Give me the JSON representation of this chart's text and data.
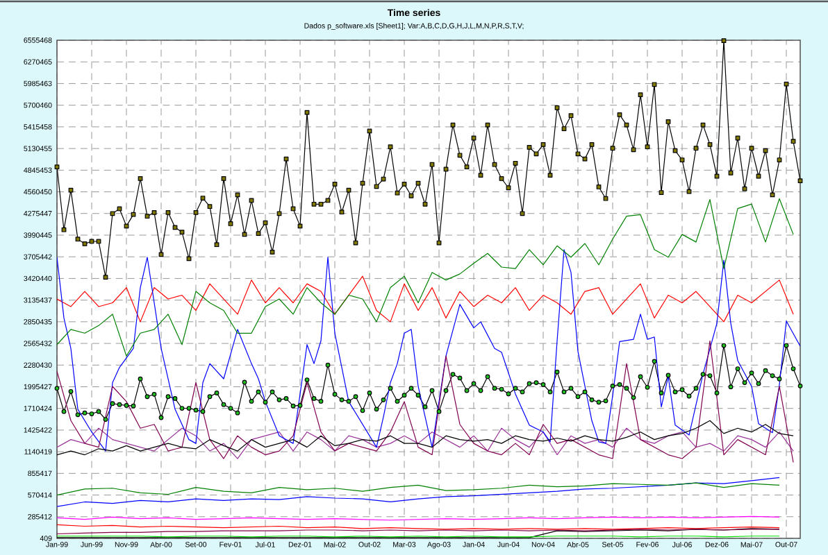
{
  "chart_data": {
    "type": "line",
    "title": "Time series",
    "subtitle": "Dados p_software.xls [Sheet1];  Var:A,B,C,D,G,H,J,L,M,N,P,R,S,T,V;",
    "x": [
      "1999-01",
      "1999-02",
      "1999-03",
      "1999-04",
      "1999-05",
      "1999-06",
      "1999-07",
      "1999-08",
      "1999-09",
      "1999-10",
      "1999-11",
      "1999-12",
      "2000-01",
      "2000-02",
      "2000-03",
      "2000-04",
      "2000-05",
      "2000-06",
      "2000-07",
      "2000-08",
      "2000-09",
      "2000-10",
      "2000-11",
      "2000-12",
      "2001-01",
      "2001-02",
      "2001-03",
      "2001-04",
      "2001-05",
      "2001-06",
      "2001-07",
      "2001-08",
      "2001-09",
      "2001-10",
      "2001-11",
      "2001-12",
      "2002-01",
      "2002-02",
      "2002-03",
      "2002-04",
      "2002-05",
      "2002-06",
      "2002-07",
      "2002-08",
      "2002-09",
      "2002-10",
      "2002-11",
      "2002-12",
      "2003-01",
      "2003-02",
      "2003-03",
      "2003-04",
      "2003-05",
      "2003-06",
      "2003-07",
      "2003-08",
      "2003-09",
      "2003-10",
      "2003-11",
      "2003-12",
      "2004-01",
      "2004-02",
      "2004-03",
      "2004-04",
      "2004-05",
      "2004-06",
      "2004-07",
      "2004-08",
      "2004-09",
      "2004-10",
      "2004-11",
      "2004-12",
      "2005-01",
      "2005-02",
      "2005-03",
      "2005-04",
      "2005-05",
      "2005-06",
      "2005-07",
      "2005-08",
      "2005-09",
      "2005-10",
      "2005-11",
      "2005-12",
      "2006-01",
      "2006-02",
      "2006-03",
      "2006-04",
      "2006-05",
      "2006-06",
      "2006-07",
      "2006-08",
      "2006-09",
      "2006-10",
      "2006-11",
      "2006-12",
      "2007-01",
      "2007-02",
      "2007-03",
      "2007-04",
      "2007-05",
      "2007-06",
      "2007-07",
      "2007-08",
      "2007-09",
      "2007-10",
      "2007-11",
      "2007-12"
    ],
    "xlim": [
      "1999-01",
      "2007-12"
    ],
    "xticks": [
      {
        "value": "1999-01",
        "label": "Jan-99"
      },
      {
        "value": "1999-06",
        "label": "Jun-99"
      },
      {
        "value": "1999-11",
        "label": "Nov-99"
      },
      {
        "value": "2000-04",
        "label": "Abr-00"
      },
      {
        "value": "2000-09",
        "label": "Set-00"
      },
      {
        "value": "2001-02",
        "label": "Fev-01"
      },
      {
        "value": "2001-07",
        "label": "Jul-01"
      },
      {
        "value": "2001-12",
        "label": "Dez-01"
      },
      {
        "value": "2002-05",
        "label": "Mai-02"
      },
      {
        "value": "2002-10",
        "label": "Out-02"
      },
      {
        "value": "2003-03",
        "label": "Mar-03"
      },
      {
        "value": "2003-08",
        "label": "Ago-03"
      },
      {
        "value": "2004-01",
        "label": "Jan-04"
      },
      {
        "value": "2004-06",
        "label": "Jun-04"
      },
      {
        "value": "2004-11",
        "label": "Nov-04"
      },
      {
        "value": "2005-04",
        "label": "Abr-05"
      },
      {
        "value": "2005-09",
        "label": "Set-05"
      },
      {
        "value": "2006-02",
        "label": "Fev-06"
      },
      {
        "value": "2006-07",
        "label": "Jul-06"
      },
      {
        "value": "2006-12",
        "label": "Dez-06"
      },
      {
        "value": "2007-05",
        "label": "Mai-07"
      },
      {
        "value": "2007-10",
        "label": "Out-07"
      }
    ],
    "ylim": [
      409,
      6555468
    ],
    "yticks": [
      409,
      285412,
      570414,
      855417,
      1140419,
      1425422,
      1710424,
      1995427,
      2280430,
      2565432,
      2850435,
      3135437,
      3420440,
      3705442,
      3990445,
      4275447,
      4560450,
      4845453,
      5130455,
      5415458,
      5700460,
      5985463,
      6270465,
      6555468
    ],
    "grid": true,
    "marker": "none",
    "line_style": "solid",
    "series": [
      {
        "color": "#ff0000",
        "x": [
          "1999-01",
          "1999-05",
          "1999-09",
          "2000-01",
          "2000-05",
          "2000-09",
          "2001-01",
          "2001-05",
          "2001-09",
          "2002-01",
          "2002-05",
          "2002-09",
          "2003-01",
          "2003-05",
          "2003-09",
          "2004-01",
          "2004-05",
          "2004-09",
          "2005-01",
          "2005-05",
          "2005-09",
          "2006-01",
          "2006-05",
          "2006-09",
          "2007-01",
          "2007-05",
          "2007-09"
        ],
        "values": [
          180000,
          160000,
          170000,
          150000,
          160000,
          150000,
          140000,
          150000,
          160000,
          140000,
          150000,
          130000,
          140000,
          130000,
          120000,
          130000,
          120000,
          130000,
          120000,
          130000,
          120000,
          130000,
          140000,
          130000,
          140000,
          150000,
          140000
        ]
      },
      {
        "color": "#0000ff",
        "x": [
          "1999-01",
          "1999-05",
          "1999-09",
          "2000-01",
          "2000-05",
          "2000-09",
          "2001-01",
          "2001-05",
          "2001-09",
          "2002-01",
          "2002-05",
          "2002-09",
          "2003-01",
          "2003-05",
          "2003-09",
          "2004-01",
          "2004-05",
          "2004-09",
          "2005-01",
          "2005-05",
          "2005-09",
          "2006-01",
          "2006-05",
          "2006-09",
          "2007-01",
          "2007-05",
          "2007-09"
        ],
        "values": [
          420000,
          480000,
          460000,
          500000,
          480000,
          520000,
          500000,
          520000,
          510000,
          550000,
          530000,
          520000,
          480000,
          520000,
          550000,
          560000,
          580000,
          600000,
          620000,
          650000,
          660000,
          680000,
          700000,
          730000,
          720000,
          760000,
          800000
        ]
      },
      {
        "color": "#008000",
        "x": [
          "1999-01",
          "1999-05",
          "1999-09",
          "2000-01",
          "2000-05",
          "2000-09",
          "2001-01",
          "2001-05",
          "2001-09",
          "2002-01",
          "2002-05",
          "2002-09",
          "2003-01",
          "2003-05",
          "2003-09",
          "2004-01",
          "2004-05",
          "2004-09",
          "2005-01",
          "2005-05",
          "2005-09",
          "2006-01",
          "2006-05",
          "2006-09",
          "2007-01",
          "2007-05",
          "2007-09"
        ],
        "values": [
          570000,
          650000,
          660000,
          600000,
          580000,
          670000,
          620000,
          600000,
          670000,
          640000,
          660000,
          620000,
          670000,
          700000,
          630000,
          640000,
          660000,
          700000,
          680000,
          690000,
          720000,
          710000,
          700000,
          730000,
          670000,
          720000,
          700000
        ]
      },
      {
        "color": "#993399",
        "x": [
          "1999-01",
          "1999-03",
          "1999-05",
          "1999-07",
          "1999-09",
          "1999-11",
          "2000-01",
          "2000-03",
          "2000-05",
          "2000-07",
          "2000-09",
          "2000-11",
          "2001-01",
          "2001-03",
          "2001-05",
          "2001-07",
          "2001-09",
          "2001-11",
          "2002-01",
          "2002-03",
          "2002-05",
          "2002-07",
          "2002-09",
          "2002-11",
          "2003-01",
          "2003-03",
          "2003-05",
          "2003-07",
          "2003-09",
          "2003-11",
          "2004-01",
          "2004-03",
          "2004-05",
          "2004-07",
          "2004-09",
          "2004-11",
          "2005-01",
          "2005-03",
          "2005-05",
          "2005-07",
          "2005-09",
          "2005-11",
          "2006-01",
          "2006-03",
          "2006-05",
          "2006-07",
          "2006-09",
          "2006-11",
          "2007-01",
          "2007-03",
          "2007-05",
          "2007-07",
          "2007-09",
          "2007-11"
        ],
        "values": [
          1200000,
          1300000,
          1250000,
          1450000,
          1300000,
          1250000,
          1200000,
          1150000,
          1300000,
          1450000,
          1350000,
          1150000,
          1250000,
          1050000,
          1300000,
          1350000,
          1400000,
          1150000,
          1400000,
          1300000,
          1150000,
          1350000,
          1300000,
          1200000,
          1250000,
          1350000,
          1250000,
          1400000,
          1300000,
          1200000,
          1350000,
          1150000,
          1450000,
          1300000,
          1200000,
          1400000,
          1100000,
          1350000,
          1250000,
          1300000,
          1200000,
          1450000,
          1300000,
          1250000,
          1350000,
          1400000,
          1200000,
          1250000,
          1150000,
          1350000,
          1300000,
          1200000,
          1400000,
          1150000
        ]
      },
      {
        "color": "#000000",
        "x": [
          "1999-01",
          "1999-05",
          "1999-09",
          "2000-01",
          "2000-05",
          "2000-09",
          "2001-01",
          "2001-05",
          "2001-09",
          "2002-01",
          "2002-05",
          "2002-09",
          "2003-01",
          "2003-05",
          "2003-09",
          "2004-01",
          "2004-05",
          "2004-09",
          "2005-01",
          "2005-05",
          "2005-09",
          "2006-01",
          "2006-05",
          "2006-09",
          "2007-01",
          "2007-05",
          "2007-09"
        ],
        "values": [
          10000,
          10000,
          10000,
          10000,
          10000,
          10000,
          10000,
          10000,
          10000,
          10000,
          10000,
          10000,
          10000,
          10000,
          10000,
          10000,
          10000,
          10000,
          100000,
          90000,
          100000,
          110000,
          100000,
          120000,
          110000,
          130000,
          120000
        ]
      },
      {
        "color": "#ff00ff",
        "x": [
          "1999-01",
          "1999-05",
          "1999-09",
          "2000-01",
          "2000-05",
          "2000-09",
          "2001-01",
          "2001-05",
          "2001-09",
          "2002-01",
          "2002-05",
          "2002-09",
          "2003-01",
          "2003-05",
          "2003-09",
          "2004-01",
          "2004-05",
          "2004-09",
          "2005-01",
          "2005-05",
          "2005-09",
          "2006-01",
          "2006-05",
          "2006-09",
          "2007-01",
          "2007-05",
          "2007-09"
        ],
        "values": [
          270000,
          250000,
          280000,
          260000,
          270000,
          250000,
          260000,
          270000,
          260000,
          250000,
          260000,
          250000,
          240000,
          250000,
          260000,
          250000,
          260000,
          270000,
          260000,
          270000,
          280000,
          270000,
          280000,
          270000,
          280000,
          290000,
          280000
        ]
      },
      {
        "color": "#800040",
        "x": [
          "1999-01",
          "1999-05",
          "1999-09",
          "2000-01",
          "2000-05",
          "2000-09",
          "2001-01",
          "2001-05",
          "2001-09",
          "2002-01",
          "2002-05",
          "2002-09",
          "2003-01",
          "2003-05",
          "2003-09",
          "2004-01",
          "2004-05",
          "2004-09",
          "2005-01",
          "2005-05",
          "2005-09",
          "2006-01",
          "2006-05",
          "2006-09",
          "2007-01",
          "2007-05",
          "2007-09"
        ],
        "values": [
          60000,
          70000,
          80000,
          80000,
          90000,
          90000,
          100000,
          100000,
          100000,
          110000,
          110000,
          100000,
          110000,
          100000,
          110000,
          100000,
          110000,
          100000,
          110000,
          100000,
          110000,
          120000,
          110000,
          120000,
          110000,
          120000,
          120000
        ]
      },
      {
        "color": "#00e000",
        "x": [
          "1999-01",
          "1999-05",
          "1999-09",
          "2000-01",
          "2000-05",
          "2000-09",
          "2001-01",
          "2001-05",
          "2001-09",
          "2002-01",
          "2002-05",
          "2002-09",
          "2003-01",
          "2003-05",
          "2003-09",
          "2004-01",
          "2004-05",
          "2004-09",
          "2005-01",
          "2005-05",
          "2005-09",
          "2006-01",
          "2006-05",
          "2006-09",
          "2007-01",
          "2007-05",
          "2007-09"
        ],
        "values": [
          30000,
          30000,
          30000,
          30000,
          20000,
          30000,
          30000,
          20000,
          30000,
          30000,
          20000,
          30000,
          20000,
          30000,
          20000,
          30000,
          20000,
          20000,
          30000,
          30000,
          30000,
          20000,
          30000,
          30000,
          20000,
          30000,
          30000
        ]
      },
      {
        "color": "#000000",
        "marker": "circle",
        "values": [
          1975000,
          1670000,
          1933000,
          1627000,
          1651000,
          1639000,
          1670000,
          1566000,
          1774000,
          1761000,
          1749000,
          1743000,
          2098000,
          1865000,
          1896000,
          1590000,
          1865000,
          1841000,
          1712000,
          1712000,
          1688000,
          1670000,
          1865000,
          1914000,
          1761000,
          1712000,
          1651000,
          2055000,
          1804000,
          1927000,
          1792000,
          1927000,
          1823000,
          1841000,
          1743000,
          1749000,
          2086000,
          1841000,
          1804000,
          2281000,
          1896000,
          1823000,
          1804000,
          1865000,
          1682000,
          1914000,
          1700000,
          1823000,
          1975000,
          1804000,
          1884000,
          1975000,
          1884000,
          1731000,
          1945000,
          1670000,
          1945000,
          2159000,
          2110000,
          1945000,
          2037000,
          1945000,
          2128000,
          1975000,
          1963000,
          1902000,
          1975000,
          1927000,
          2037000,
          2049000,
          2024000,
          1927000,
          2190000,
          1927000,
          1975000,
          1865000,
          1927000,
          1823000,
          1792000,
          1810000,
          2006000,
          2024000,
          1975000,
          1853000,
          2128000,
          1988000,
          2330000,
          1914000,
          2147000,
          1927000,
          1957000,
          1872000,
          1975000,
          2159000,
          2141000,
          1914000,
          2538000,
          1994000,
          2232000,
          2049000,
          2177000,
          2037000,
          2208000,
          2141000,
          2098000,
          2538000,
          2232000,
          2006000
        ]
      },
      {
        "color": "#000000",
        "marker": "square",
        "values": [
          4888000,
          4061000,
          4582000,
          3938000,
          3877000,
          3908000,
          3908000,
          3436000,
          4275000,
          4337000,
          4110000,
          4263000,
          4735000,
          4239000,
          4288000,
          3736000,
          4288000,
          4092000,
          4030000,
          3681000,
          4288000,
          4478000,
          4367000,
          3865000,
          4735000,
          4141000,
          4521000,
          4000000,
          4447000,
          4012000,
          4153000,
          3767000,
          4275000,
          4993000,
          4337000,
          4110000,
          5605000,
          4398000,
          4398000,
          4447000,
          4662000,
          4294000,
          4582000,
          3889000,
          4674000,
          5360000,
          4631000,
          4729000,
          5152000,
          4545000,
          4662000,
          4508000,
          4674000,
          4398000,
          4919000,
          3889000,
          4858000,
          5440000,
          5042000,
          4888000,
          5268000,
          4778000,
          5440000,
          4919000,
          4735000,
          4613000,
          4937000,
          4275000,
          5146000,
          5060000,
          5183000,
          4778000,
          5667000,
          5391000,
          5563000,
          5060000,
          4993000,
          5183000,
          4625000,
          4472000,
          5134000,
          5575000,
          5440000,
          5115000,
          5838000,
          5152000,
          5973000,
          4551000,
          5483000,
          5103000,
          4980000,
          4564000,
          5134000,
          5440000,
          5183000,
          4766000,
          6550000,
          4809000,
          5268000,
          4600000,
          5134000,
          4766000,
          5103000,
          4521000,
          4980000,
          5979000,
          5225000,
          4705000
        ]
      },
      {
        "color": "#ff0000",
        "x": [
          "1999-01",
          "1999-03",
          "1999-05",
          "1999-07",
          "1999-09",
          "1999-11",
          "2000-01",
          "2000-03",
          "2000-05",
          "2000-07",
          "2000-09",
          "2000-11",
          "2001-01",
          "2001-03",
          "2001-05",
          "2001-07",
          "2001-09",
          "2001-11",
          "2002-01",
          "2002-03",
          "2002-05",
          "2002-07",
          "2002-09",
          "2002-11",
          "2003-01",
          "2003-03",
          "2003-05",
          "2003-07",
          "2003-09",
          "2003-11",
          "2004-01",
          "2004-03",
          "2004-05",
          "2004-07",
          "2004-09",
          "2004-11",
          "2005-01",
          "2005-03",
          "2005-05",
          "2005-07",
          "2005-09",
          "2005-11",
          "2006-01",
          "2006-03",
          "2006-05",
          "2006-07",
          "2006-09",
          "2006-11",
          "2007-01",
          "2007-03",
          "2007-05",
          "2007-07",
          "2007-09",
          "2007-11"
        ],
        "values": [
          3150000,
          3050000,
          3250000,
          3050000,
          3100000,
          3300000,
          2850000,
          3300000,
          3150000,
          3200000,
          3000000,
          3350000,
          3150000,
          2950000,
          3400000,
          3100000,
          3300000,
          3100000,
          3350000,
          3250000,
          2950000,
          3200000,
          3450000,
          3000000,
          2850000,
          3350000,
          3000000,
          3300000,
          2900000,
          3250000,
          3050000,
          3200000,
          3100000,
          3300000,
          3000000,
          3200000,
          3100000,
          2950000,
          3250000,
          3300000,
          2950000,
          3150000,
          3350000,
          2900000,
          3200000,
          3100000,
          3250000,
          3050000,
          2850000,
          3200000,
          3100000,
          3250000,
          3400000,
          2950000
        ]
      },
      {
        "color": "#0000ff",
        "x": [
          "1999-01",
          "1999-02",
          "1999-03",
          "1999-04",
          "1999-06",
          "1999-08",
          "1999-09",
          "1999-10",
          "1999-12",
          "2000-01",
          "2000-02",
          "2000-04",
          "2000-06",
          "2000-08",
          "2000-09",
          "2000-10",
          "2000-11",
          "2001-01",
          "2001-03",
          "2001-05",
          "2001-06",
          "2001-07",
          "2001-09",
          "2001-11",
          "2002-01",
          "2002-02",
          "2002-03",
          "2002-04",
          "2002-05",
          "2002-07",
          "2002-09",
          "2002-11",
          "2002-12",
          "2003-01",
          "2003-02",
          "2003-03",
          "2003-04",
          "2003-05",
          "2003-07",
          "2003-09",
          "2003-11",
          "2004-01",
          "2004-02",
          "2004-04",
          "2004-05",
          "2004-07",
          "2004-09",
          "2004-11",
          "2004-12",
          "2005-01",
          "2005-02",
          "2005-03",
          "2005-04",
          "2005-06",
          "2005-07",
          "2005-08",
          "2005-09",
          "2005-10",
          "2005-12",
          "2006-01",
          "2006-02",
          "2006-03",
          "2006-04",
          "2006-05",
          "2006-06",
          "2006-08",
          "2006-10",
          "2006-12",
          "2007-01",
          "2007-02",
          "2007-03",
          "2007-05",
          "2007-06",
          "2007-08",
          "2007-09",
          "2007-10",
          "2007-12"
        ],
        "values": [
          3700000,
          2900000,
          2500000,
          1700000,
          1400000,
          1150000,
          2050000,
          2250000,
          2500000,
          3300000,
          3700000,
          2500000,
          1700000,
          1300000,
          1250000,
          2050000,
          2300000,
          2100000,
          2750000,
          2300000,
          2100000,
          1800000,
          1350000,
          1250000,
          2550000,
          2300000,
          2600000,
          3700000,
          2700000,
          1800000,
          1500000,
          1200000,
          1600000,
          2050000,
          2300000,
          2700000,
          2750000,
          2000000,
          1200000,
          2400000,
          3080000,
          2770000,
          2850000,
          2500000,
          2450000,
          1900000,
          1490000,
          1400000,
          1270000,
          2600000,
          3800000,
          3500000,
          2460000,
          1550000,
          1270000,
          1250000,
          1880000,
          2590000,
          2620000,
          2950000,
          2620000,
          2650000,
          1730000,
          2130000,
          1490000,
          1360000,
          2160000,
          2830000,
          3660000,
          2830000,
          2340000,
          2000000,
          1510000,
          1390000,
          2020000,
          2860000,
          2530000
        ]
      },
      {
        "color": "#008000",
        "x": [
          "1999-01",
          "1999-03",
          "1999-05",
          "1999-07",
          "1999-09",
          "1999-11",
          "2000-01",
          "2000-03",
          "2000-05",
          "2000-07",
          "2000-09",
          "2000-11",
          "2001-01",
          "2001-03",
          "2001-05",
          "2001-07",
          "2001-09",
          "2001-11",
          "2002-01",
          "2002-03",
          "2002-05",
          "2002-07",
          "2002-09",
          "2002-11",
          "2003-01",
          "2003-03",
          "2003-05",
          "2003-07",
          "2003-09",
          "2003-11",
          "2004-01",
          "2004-03",
          "2004-05",
          "2004-07",
          "2004-09",
          "2004-11",
          "2005-01",
          "2005-03",
          "2005-05",
          "2005-07",
          "2005-09",
          "2005-11",
          "2006-01",
          "2006-03",
          "2006-05",
          "2006-07",
          "2006-09",
          "2006-11",
          "2007-01",
          "2007-03",
          "2007-05",
          "2007-07",
          "2007-09",
          "2007-11"
        ],
        "values": [
          2550000,
          2750000,
          2700000,
          2800000,
          2950000,
          2400000,
          2700000,
          2750000,
          2950000,
          2550000,
          3250000,
          3100000,
          3000000,
          2700000,
          2700000,
          3050000,
          3150000,
          2950000,
          3300000,
          3100000,
          2950000,
          3200000,
          3150000,
          2850000,
          3300000,
          3450000,
          3100000,
          3500000,
          3400000,
          3480000,
          3620000,
          3750000,
          3570000,
          3550000,
          3800000,
          3600000,
          3850000,
          3700000,
          3880000,
          3600000,
          3940000,
          4240000,
          4260000,
          3800000,
          3700000,
          4000000,
          3900000,
          4460000,
          3550000,
          4340000,
          4400000,
          3900000,
          4470000,
          4000000
        ]
      },
      {
        "color": "#800050",
        "x": [
          "1999-01",
          "1999-03",
          "1999-05",
          "1999-07",
          "1999-09",
          "1999-11",
          "2000-01",
          "2000-03",
          "2000-05",
          "2000-07",
          "2000-09",
          "2000-11",
          "2001-01",
          "2001-03",
          "2001-05",
          "2001-07",
          "2001-09",
          "2001-11",
          "2002-01",
          "2002-03",
          "2002-05",
          "2002-07",
          "2002-09",
          "2002-11",
          "2003-01",
          "2003-03",
          "2003-05",
          "2003-07",
          "2003-09",
          "2003-11",
          "2004-01",
          "2004-03",
          "2004-05",
          "2004-07",
          "2004-09",
          "2004-11",
          "2005-01",
          "2005-03",
          "2005-05",
          "2005-07",
          "2005-09",
          "2005-11",
          "2006-01",
          "2006-03",
          "2006-05",
          "2006-07",
          "2006-09",
          "2006-11",
          "2007-01",
          "2007-03",
          "2007-05",
          "2007-07",
          "2007-09",
          "2007-11"
        ],
        "values": [
          2200000,
          1550000,
          1250000,
          1200000,
          2000000,
          1800000,
          1450000,
          1500000,
          1150000,
          1200000,
          2050000,
          1300000,
          1050000,
          1350000,
          1200000,
          1100000,
          1150000,
          1350000,
          2050000,
          1400000,
          1150000,
          1250000,
          1200000,
          1150000,
          1400000,
          1800000,
          1200000,
          1100000,
          2400000,
          1500000,
          1250000,
          1150000,
          1100000,
          1250000,
          1100000,
          1500000,
          1250000,
          1300000,
          1200000,
          1100000,
          1050000,
          2300000,
          1300000,
          1200000,
          1100000,
          1050000,
          1200000,
          2600000,
          1100000,
          1300000,
          1200000,
          1100000,
          2000000,
          1000000
        ]
      },
      {
        "color": "#000000",
        "x": [
          "1999-01",
          "1999-03",
          "1999-05",
          "1999-07",
          "1999-09",
          "1999-11",
          "2000-01",
          "2000-03",
          "2000-05",
          "2000-07",
          "2000-09",
          "2000-11",
          "2001-01",
          "2001-03",
          "2001-05",
          "2001-07",
          "2001-09",
          "2001-11",
          "2002-01",
          "2002-03",
          "2002-05",
          "2002-07",
          "2002-09",
          "2002-11",
          "2003-01",
          "2003-03",
          "2003-05",
          "2003-07",
          "2003-09",
          "2003-11",
          "2004-01",
          "2004-03",
          "2004-05",
          "2004-07",
          "2004-09",
          "2004-11",
          "2005-01",
          "2005-03",
          "2005-05",
          "2005-07",
          "2005-09",
          "2005-11",
          "2006-01",
          "2006-03",
          "2006-05",
          "2006-07",
          "2006-09",
          "2006-11",
          "2007-01",
          "2007-03",
          "2007-05",
          "2007-07",
          "2007-09",
          "2007-11"
        ],
        "values": [
          1100000,
          1150000,
          1100000,
          1180000,
          1150000,
          1220000,
          1150000,
          1200000,
          1250000,
          1200000,
          1180000,
          1300000,
          1220000,
          1150000,
          1300000,
          1200000,
          1250000,
          1300000,
          1200000,
          1350000,
          1220000,
          1250000,
          1300000,
          1280000,
          1350000,
          1250000,
          1250000,
          1200000,
          1350000,
          1300000,
          1280000,
          1300000,
          1250000,
          1350000,
          1300000,
          1280000,
          1320000,
          1280000,
          1350000,
          1300000,
          1280000,
          1330000,
          1400000,
          1300000,
          1350000,
          1380000,
          1450000,
          1550000,
          1380000,
          1450000,
          1400000,
          1500000,
          1380000,
          1350000
        ]
      }
    ]
  }
}
